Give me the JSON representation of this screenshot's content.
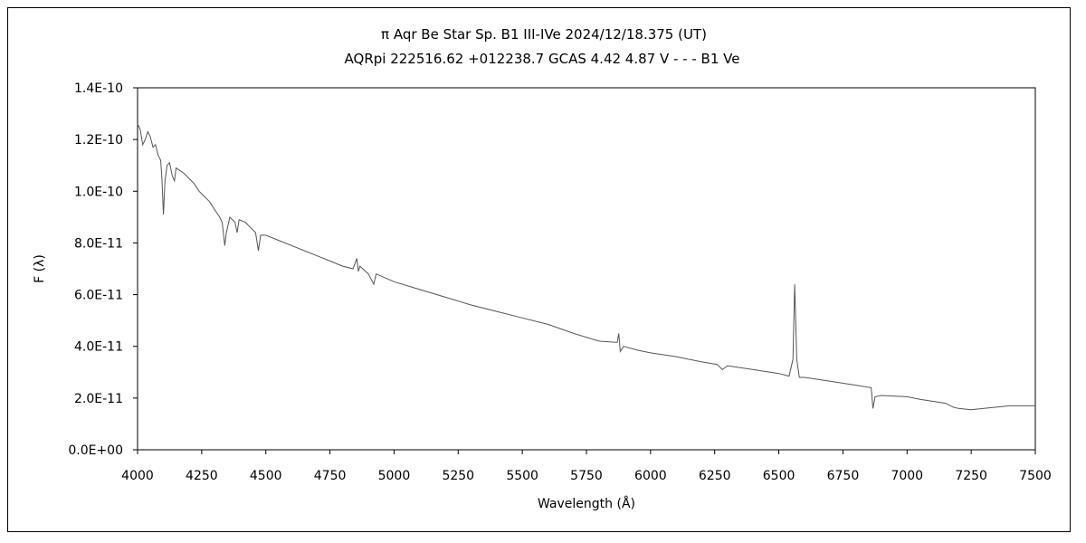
{
  "chart_data": {
    "type": "line",
    "title": "π  Aqr    Be Star    Sp. B1 III-IVe    2024/12/18.375 (UT)",
    "subtitle": "AQRpi 222516.62 +012238.7 GCAS 4.42 4.87 V - - - B1 Ve",
    "xlabel": "Wavelength (Å)",
    "ylabel": "F (λ)",
    "xlim": [
      4000,
      7500
    ],
    "ylim": [
      0,
      1.4e-10
    ],
    "x_ticks": [
      "4000",
      "4250",
      "4500",
      "4750",
      "5000",
      "5250",
      "5500",
      "5750",
      "6000",
      "6250",
      "6500",
      "6750",
      "7000",
      "7250",
      "7500"
    ],
    "y_ticks": [
      "0.0E+00",
      "2.0E-11",
      "4.0E-11",
      "6.0E-11",
      "8.0E-11",
      "1.0E-10",
      "1.2E-10",
      "1.4E-10"
    ],
    "grid": false,
    "legend": "none",
    "line_color": "#555555",
    "series": [
      {
        "points": [
          [
            4000,
            1.26e-10
          ],
          [
            4010,
            1.24e-10
          ],
          [
            4020,
            1.18e-10
          ],
          [
            4030,
            1.2e-10
          ],
          [
            4040,
            1.23e-10
          ],
          [
            4050,
            1.21e-10
          ],
          [
            4060,
            1.17e-10
          ],
          [
            4070,
            1.18e-10
          ],
          [
            4080,
            1.14e-10
          ],
          [
            4090,
            1.12e-10
          ],
          [
            4095,
            1.05e-10
          ],
          [
            4101,
            9.1e-11
          ],
          [
            4107,
            1.04e-10
          ],
          [
            4115,
            1.1e-10
          ],
          [
            4125,
            1.11e-10
          ],
          [
            4135,
            1.06e-10
          ],
          [
            4144,
            1.04e-10
          ],
          [
            4150,
            1.09e-10
          ],
          [
            4165,
            1.08e-10
          ],
          [
            4180,
            1.07e-10
          ],
          [
            4200,
            1.05e-10
          ],
          [
            4220,
            1.03e-10
          ],
          [
            4240,
            1e-10
          ],
          [
            4260,
            9.8e-11
          ],
          [
            4280,
            9.6e-11
          ],
          [
            4300,
            9.3e-11
          ],
          [
            4320,
            9e-11
          ],
          [
            4330,
            8.8e-11
          ],
          [
            4340,
            7.9e-11
          ],
          [
            4346,
            8.4e-11
          ],
          [
            4360,
            9e-11
          ],
          [
            4380,
            8.8e-11
          ],
          [
            4388,
            8.4e-11
          ],
          [
            4396,
            8.9e-11
          ],
          [
            4420,
            8.8e-11
          ],
          [
            4440,
            8.6e-11
          ],
          [
            4460,
            8.4e-11
          ],
          [
            4471,
            7.7e-11
          ],
          [
            4480,
            8.3e-11
          ],
          [
            4500,
            8.3e-11
          ],
          [
            4550,
            8.1e-11
          ],
          [
            4600,
            7.9e-11
          ],
          [
            4650,
            7.7e-11
          ],
          [
            4700,
            7.5e-11
          ],
          [
            4750,
            7.3e-11
          ],
          [
            4800,
            7.1e-11
          ],
          [
            4840,
            7e-11
          ],
          [
            4855,
            7.4e-11
          ],
          [
            4861,
            6.9e-11
          ],
          [
            4867,
            7.1e-11
          ],
          [
            4900,
            6.8e-11
          ],
          [
            4921,
            6.4e-11
          ],
          [
            4930,
            6.8e-11
          ],
          [
            5000,
            6.5e-11
          ],
          [
            5100,
            6.2e-11
          ],
          [
            5200,
            5.9e-11
          ],
          [
            5300,
            5.6e-11
          ],
          [
            5400,
            5.35e-11
          ],
          [
            5500,
            5.1e-11
          ],
          [
            5600,
            4.85e-11
          ],
          [
            5700,
            4.5e-11
          ],
          [
            5800,
            4.2e-11
          ],
          [
            5870,
            4.15e-11
          ],
          [
            5876,
            4.5e-11
          ],
          [
            5882,
            3.8e-11
          ],
          [
            5895,
            4e-11
          ],
          [
            5950,
            3.85e-11
          ],
          [
            6000,
            3.75e-11
          ],
          [
            6100,
            3.6e-11
          ],
          [
            6200,
            3.4e-11
          ],
          [
            6260,
            3.3e-11
          ],
          [
            6280,
            3.1e-11
          ],
          [
            6300,
            3.25e-11
          ],
          [
            6400,
            3.1e-11
          ],
          [
            6500,
            2.95e-11
          ],
          [
            6540,
            2.85e-11
          ],
          [
            6555,
            3.5e-11
          ],
          [
            6562,
            6.4e-11
          ],
          [
            6570,
            3.5e-11
          ],
          [
            6580,
            2.8e-11
          ],
          [
            6600,
            2.8e-11
          ],
          [
            6700,
            2.65e-11
          ],
          [
            6800,
            2.5e-11
          ],
          [
            6860,
            2.4e-11
          ],
          [
            6867,
            1.6e-11
          ],
          [
            6875,
            2.05e-11
          ],
          [
            6900,
            2.1e-11
          ],
          [
            7000,
            2.05e-11
          ],
          [
            7050,
            1.95e-11
          ],
          [
            7150,
            1.8e-11
          ],
          [
            7180,
            1.65e-11
          ],
          [
            7200,
            1.6e-11
          ],
          [
            7250,
            1.55e-11
          ],
          [
            7300,
            1.6e-11
          ],
          [
            7400,
            1.7e-11
          ],
          [
            7500,
            1.7e-11
          ]
        ]
      }
    ]
  }
}
